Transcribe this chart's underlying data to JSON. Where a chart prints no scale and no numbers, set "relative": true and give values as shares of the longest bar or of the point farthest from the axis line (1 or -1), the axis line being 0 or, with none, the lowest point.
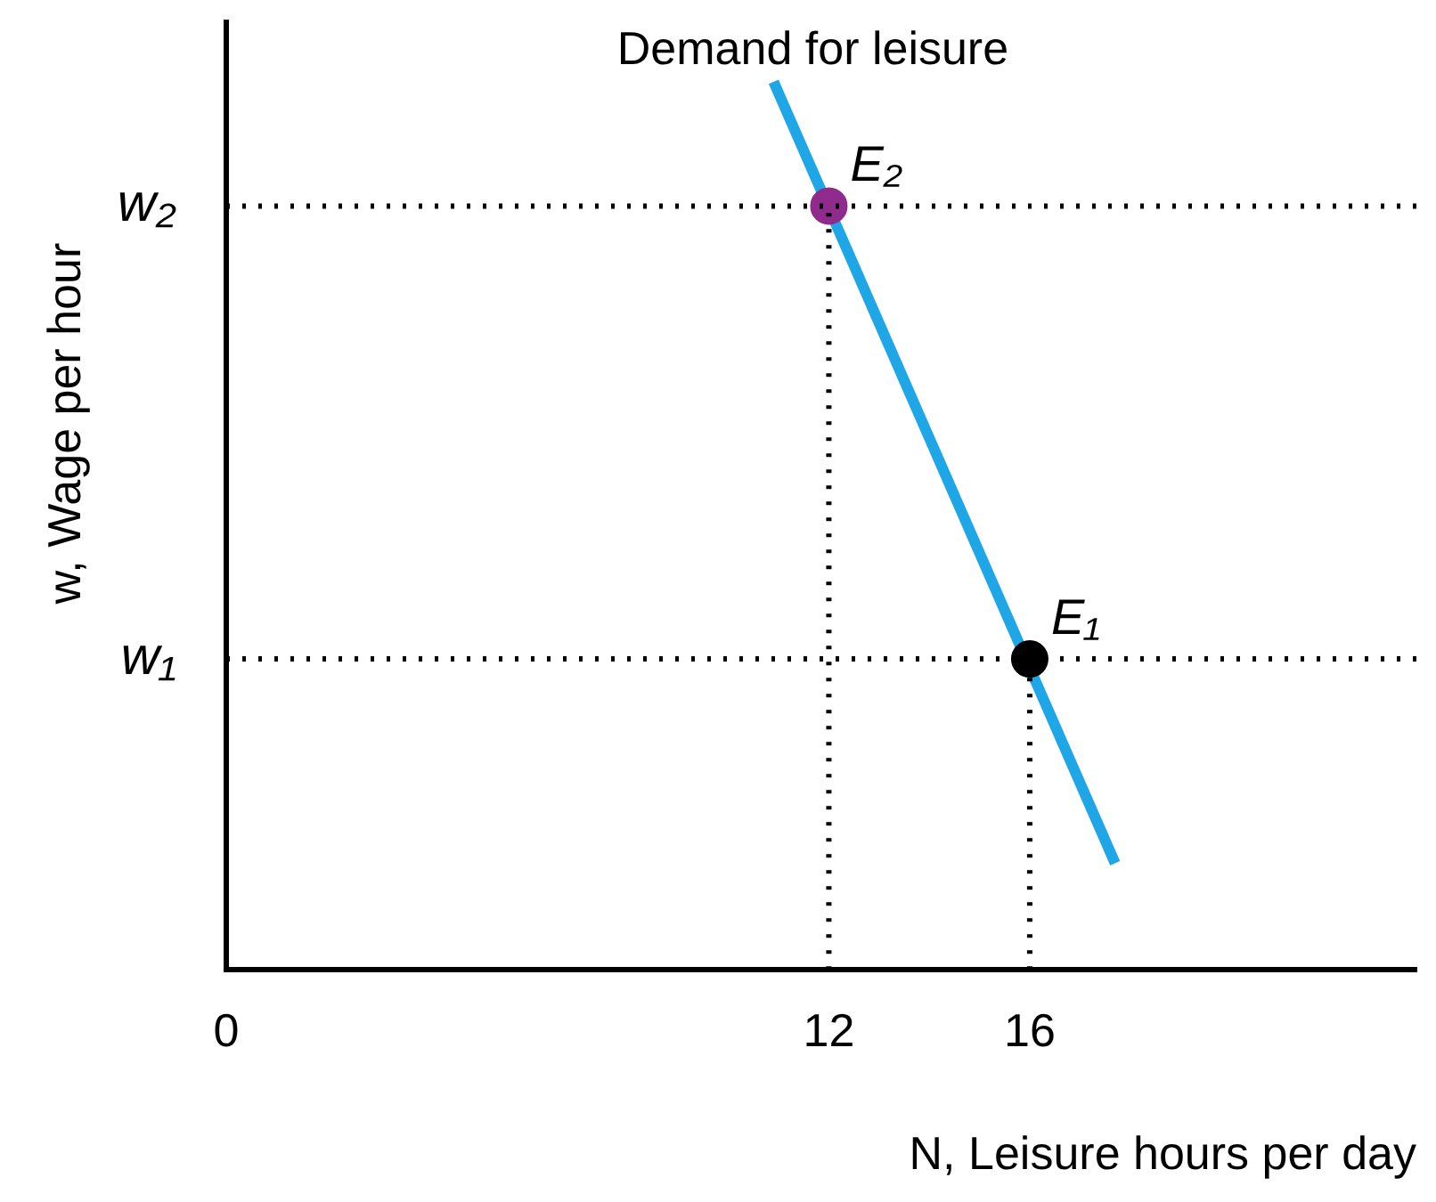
{
  "chart_data": {
    "type": "line",
    "relative": true,
    "xlabel": "N, Leisure hours per day",
    "ylabel": "w, Wage per hour",
    "xlim": [
      0,
      23.7
    ],
    "xticks": [
      0,
      12,
      16
    ],
    "grid": false,
    "legend": false,
    "series": [
      {
        "name": "Demand for leisure",
        "marker": "none",
        "color": "#1ea6e6",
        "x": [
          10.9,
          17.7
        ],
        "values": [
          1,
          0.12
        ]
      },
      {
        "name": "E₂",
        "type": "scatter",
        "marker": "circle",
        "color": "#8e2b8c",
        "x": [
          12
        ],
        "values": [
          0.86
        ]
      },
      {
        "name": "E₁",
        "type": "scatter",
        "marker": "circle",
        "color": "#000000",
        "x": [
          16
        ],
        "values": [
          0.35
        ]
      }
    ],
    "ref_lines": [
      {
        "axis": "y",
        "value": 0.86,
        "label": "w₂",
        "line_style": "dotted",
        "color": "#000000"
      },
      {
        "axis": "y",
        "value": 0.35,
        "label": "w₁",
        "line_style": "dotted",
        "color": "#000000"
      },
      {
        "axis": "x",
        "value": 12,
        "line_style": "dotted",
        "color": "#000000"
      },
      {
        "axis": "x",
        "value": 16,
        "line_style": "dotted",
        "color": "#000000"
      }
    ]
  }
}
